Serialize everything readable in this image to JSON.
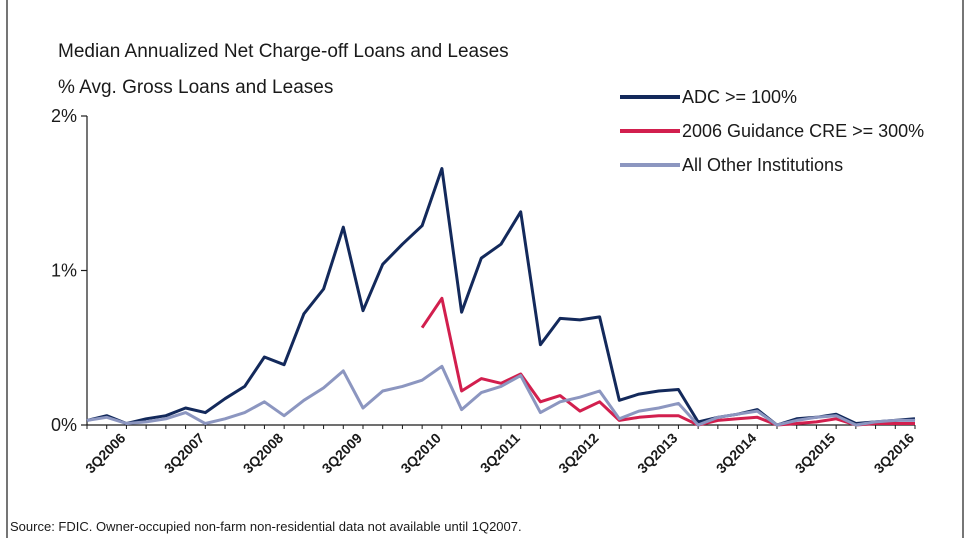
{
  "chart_data": {
    "type": "line",
    "title": "Median Annualized Net Charge-off Loans and Leases",
    "subtitle": "% Avg. Gross Loans and Leases",
    "source": "Source: FDIC. Owner-occupied non-farm non-residential data not available until 1Q2007.",
    "categories": [
      null,
      null,
      "3Q2006",
      null,
      null,
      null,
      "3Q2007",
      null,
      null,
      null,
      "3Q2008",
      null,
      null,
      null,
      "3Q2009",
      null,
      null,
      null,
      "3Q2010",
      null,
      null,
      null,
      "3Q2011",
      null,
      null,
      null,
      "3Q2012",
      null,
      null,
      null,
      "3Q2013",
      null,
      null,
      null,
      "3Q2014",
      null,
      null,
      null,
      "3Q2015",
      null,
      null,
      null,
      "3Q2016"
    ],
    "series": [
      {
        "name": "ADC >= 100%",
        "color": "#13295b",
        "values": [
          0.03,
          0.06,
          0.01,
          0.04,
          0.06,
          0.11,
          0.08,
          0.17,
          0.25,
          0.44,
          0.39,
          0.72,
          0.88,
          1.28,
          0.74,
          1.04,
          1.17,
          1.29,
          1.66,
          0.73,
          1.08,
          1.17,
          1.38,
          0.52,
          0.69,
          0.68,
          0.7,
          0.16,
          0.2,
          0.22,
          0.23,
          0.02,
          0.05,
          0.07,
          0.1,
          0.0,
          0.04,
          0.05,
          0.07,
          0.01,
          0.02,
          0.03,
          0.04
        ]
      },
      {
        "name": "2006 Guidance CRE >= 300%",
        "color": "#d21f4e",
        "values": [
          null,
          null,
          null,
          null,
          null,
          null,
          null,
          null,
          null,
          null,
          null,
          null,
          null,
          null,
          null,
          null,
          null,
          0.63,
          0.82,
          0.22,
          0.3,
          0.27,
          0.33,
          0.15,
          0.19,
          0.09,
          0.15,
          0.03,
          0.05,
          0.06,
          0.06,
          0.0,
          0.03,
          0.04,
          0.05,
          0.0,
          0.01,
          0.02,
          0.04,
          0.0,
          0.01,
          0.01,
          0.01
        ]
      },
      {
        "name": "All Other Institutions",
        "color": "#8c96c0",
        "values": [
          0.03,
          0.05,
          0.01,
          0.02,
          0.04,
          0.08,
          0.01,
          0.04,
          0.08,
          0.15,
          0.06,
          0.16,
          0.24,
          0.35,
          0.11,
          0.22,
          0.25,
          0.29,
          0.38,
          0.1,
          0.21,
          0.25,
          0.32,
          0.08,
          0.15,
          0.18,
          0.22,
          0.04,
          0.09,
          0.11,
          0.14,
          0.0,
          0.05,
          0.07,
          0.09,
          0.0,
          0.03,
          0.05,
          0.06,
          0.0,
          0.02,
          0.03,
          0.03
        ]
      }
    ],
    "ylim": [
      0,
      2
    ],
    "yticks": [
      {
        "value": 0,
        "label": "0%"
      },
      {
        "value": 1,
        "label": "1%"
      },
      {
        "value": 2,
        "label": "2%"
      }
    ],
    "grid": false,
    "legend": "top-right"
  }
}
